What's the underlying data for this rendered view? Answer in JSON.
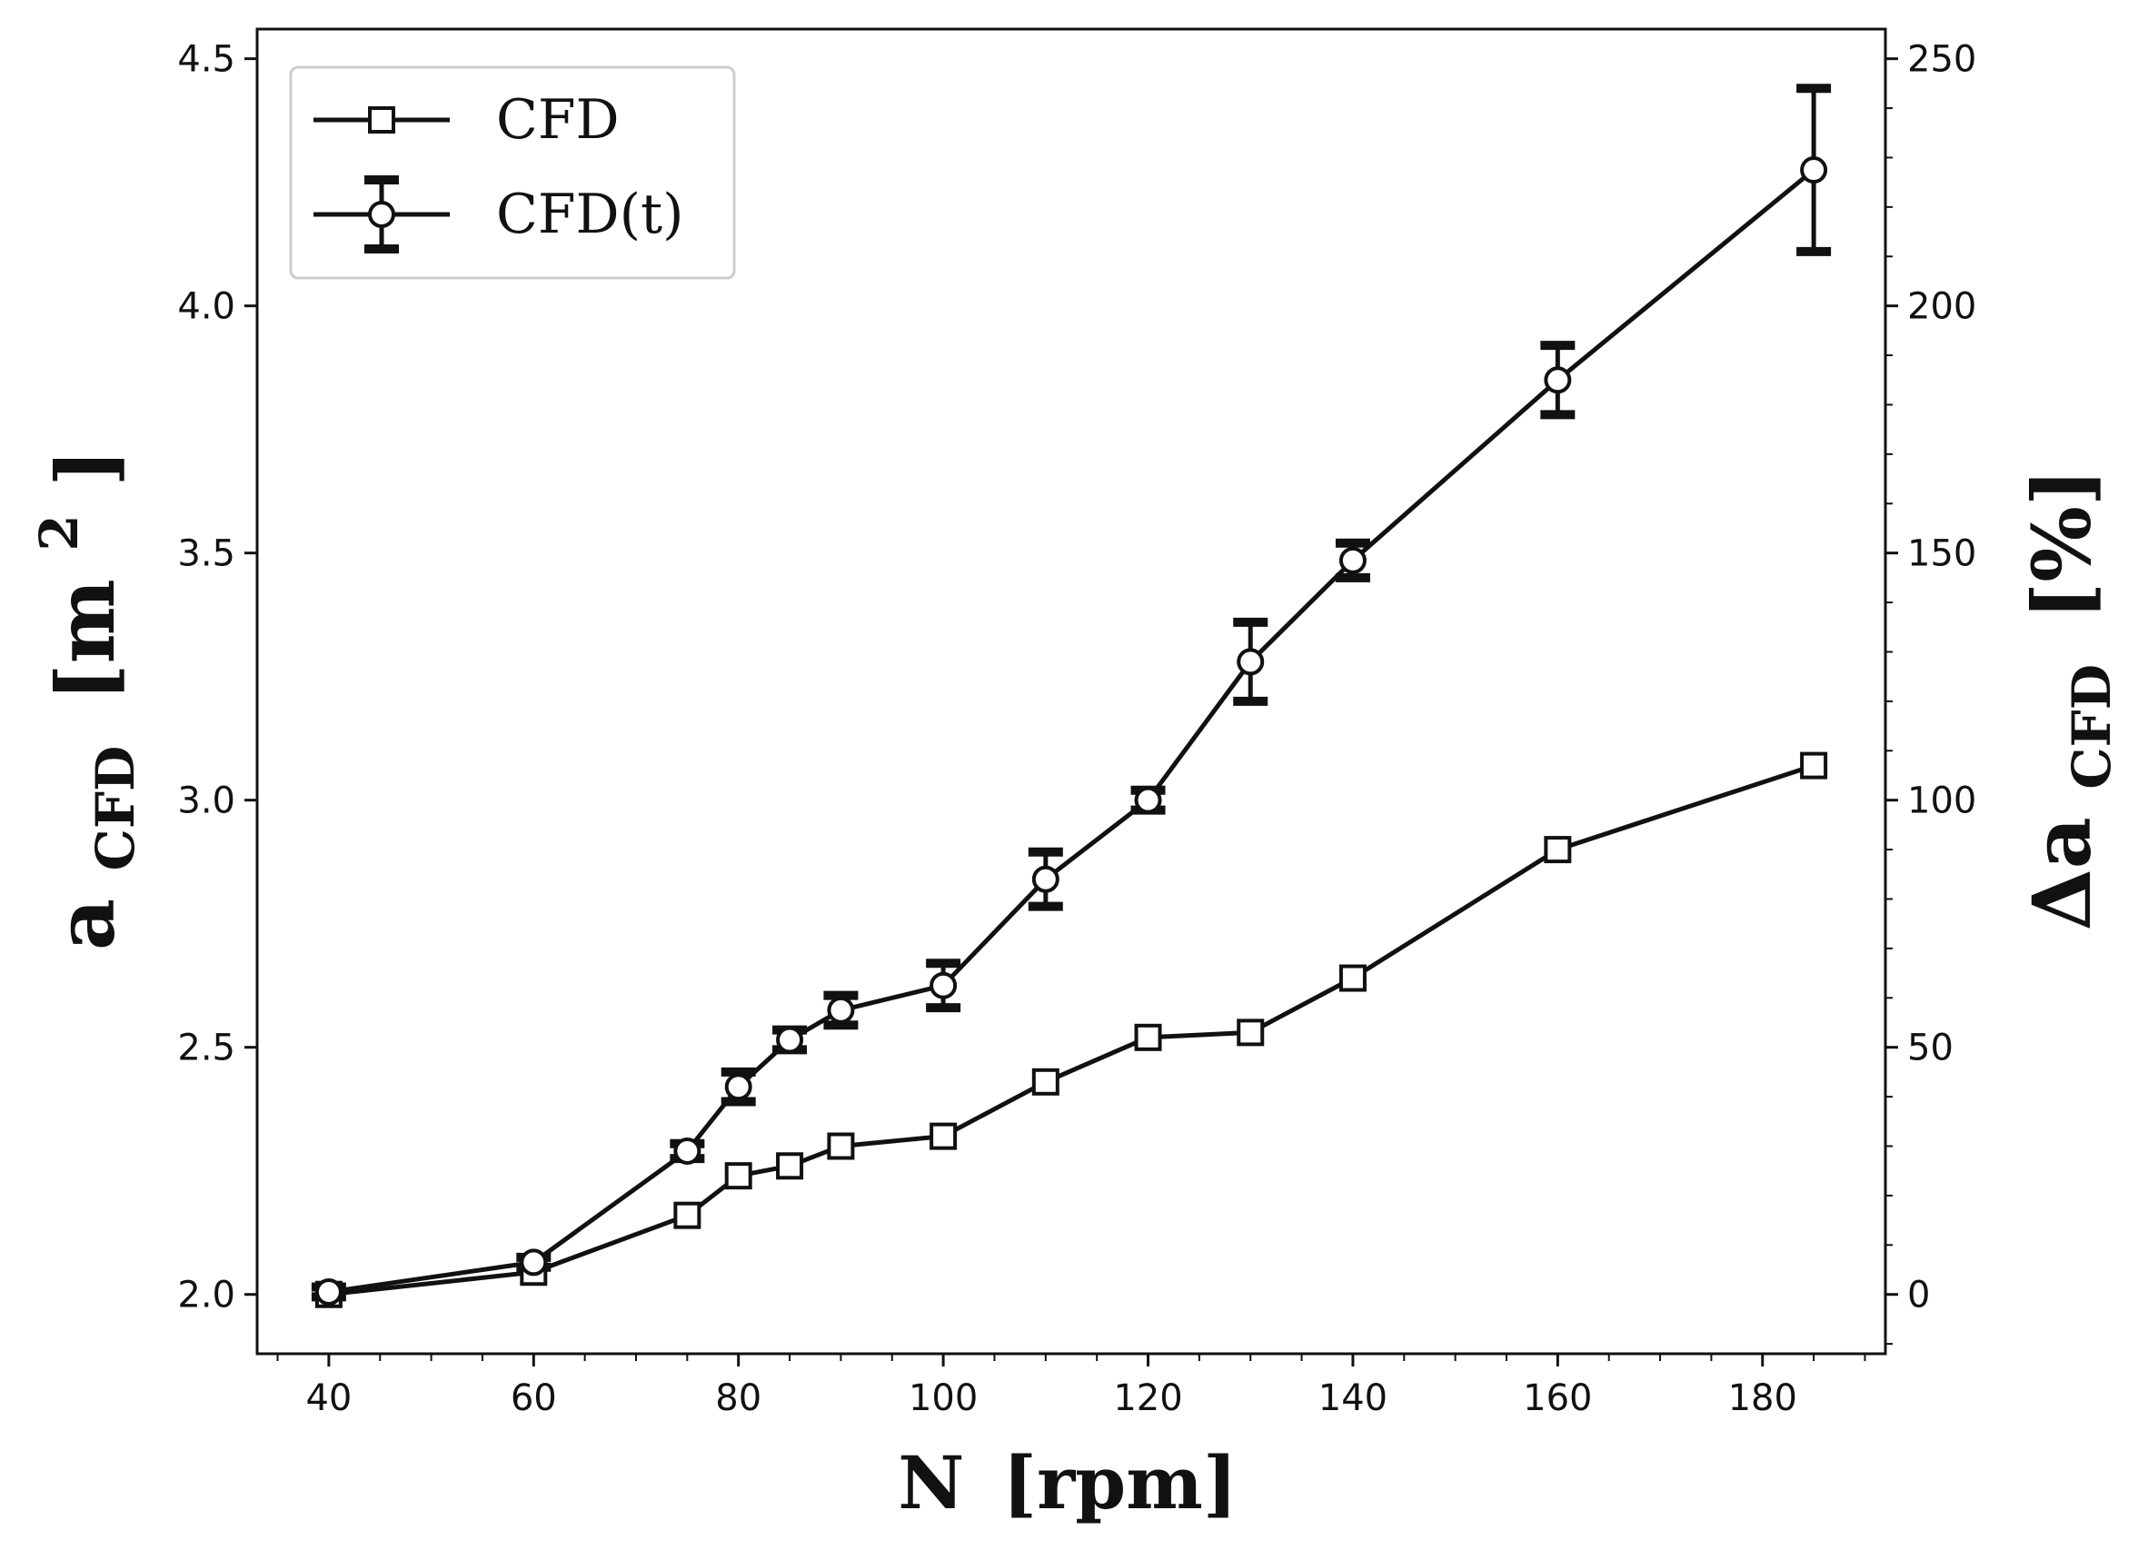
{
  "chart_data": {
    "type": "line",
    "x": [
      40,
      60,
      75,
      80,
      85,
      90,
      100,
      110,
      120,
      130,
      140,
      160,
      185
    ],
    "xlim": [
      33,
      192
    ],
    "ylim": [
      1.88,
      4.56
    ],
    "y2lim": [
      -12,
      256
    ],
    "xticks": [
      40,
      60,
      80,
      100,
      120,
      140,
      160,
      180
    ],
    "yticks": [
      2.0,
      2.5,
      3.0,
      3.5,
      4.0,
      4.5
    ],
    "ytick_labels": [
      "2.0",
      "2.5",
      "3.0",
      "3.5",
      "4.0",
      "4.5"
    ],
    "y2ticks": [
      0,
      50,
      100,
      150,
      200,
      250
    ],
    "xlabel": {
      "main": "N",
      "unit": "[rpm]"
    },
    "ylabel": {
      "main": "a",
      "sub": "CFD",
      "unit": "[m",
      "sup": "2",
      "close": "]"
    },
    "y2label": {
      "main": "Δa",
      "sub": "CFD",
      "unit": "[%]"
    },
    "legend_position": "top-left",
    "series": [
      {
        "name": "CFD",
        "marker": "square",
        "values": [
          2.0,
          2.045,
          2.16,
          2.24,
          2.26,
          2.3,
          2.32,
          2.43,
          2.52,
          2.53,
          2.64,
          2.9,
          3.07
        ]
      },
      {
        "name": "CFD(t)",
        "marker": "circle",
        "values": [
          2.005,
          2.065,
          2.29,
          2.42,
          2.515,
          2.575,
          2.625,
          2.84,
          3.0,
          3.28,
          3.485,
          3.85,
          4.275
        ],
        "error": [
          0.01,
          0.01,
          0.015,
          0.03,
          0.02,
          0.03,
          0.045,
          0.055,
          0.02,
          0.08,
          0.035,
          0.07,
          0.165
        ]
      }
    ],
    "colors": {
      "line": "#111111",
      "marker_fill": "#ffffff",
      "frame": "#111111"
    }
  }
}
